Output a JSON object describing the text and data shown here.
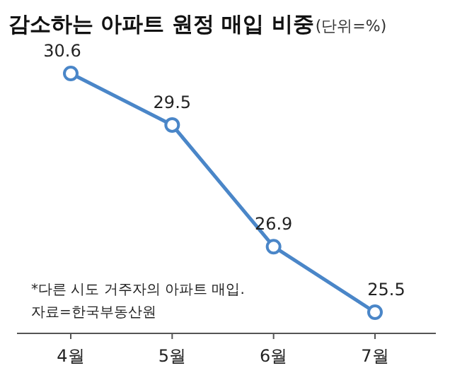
{
  "chart_data": {
    "type": "line",
    "title": "감소하는 아파트 원정 매입 비중",
    "subtitle": "(단위=%)",
    "categories": [
      "4월",
      "5월",
      "6월",
      "7월"
    ],
    "series": [
      {
        "color": "#4a86c8",
        "values": [
          30.6,
          29.5,
          26.9,
          25.5
        ]
      }
    ],
    "data_labels": true,
    "marker": "circle",
    "line_style": "solid",
    "annotations": [
      "*다른 시도 거주자의 아파트 매입.",
      "자료=한국부동산원"
    ]
  }
}
